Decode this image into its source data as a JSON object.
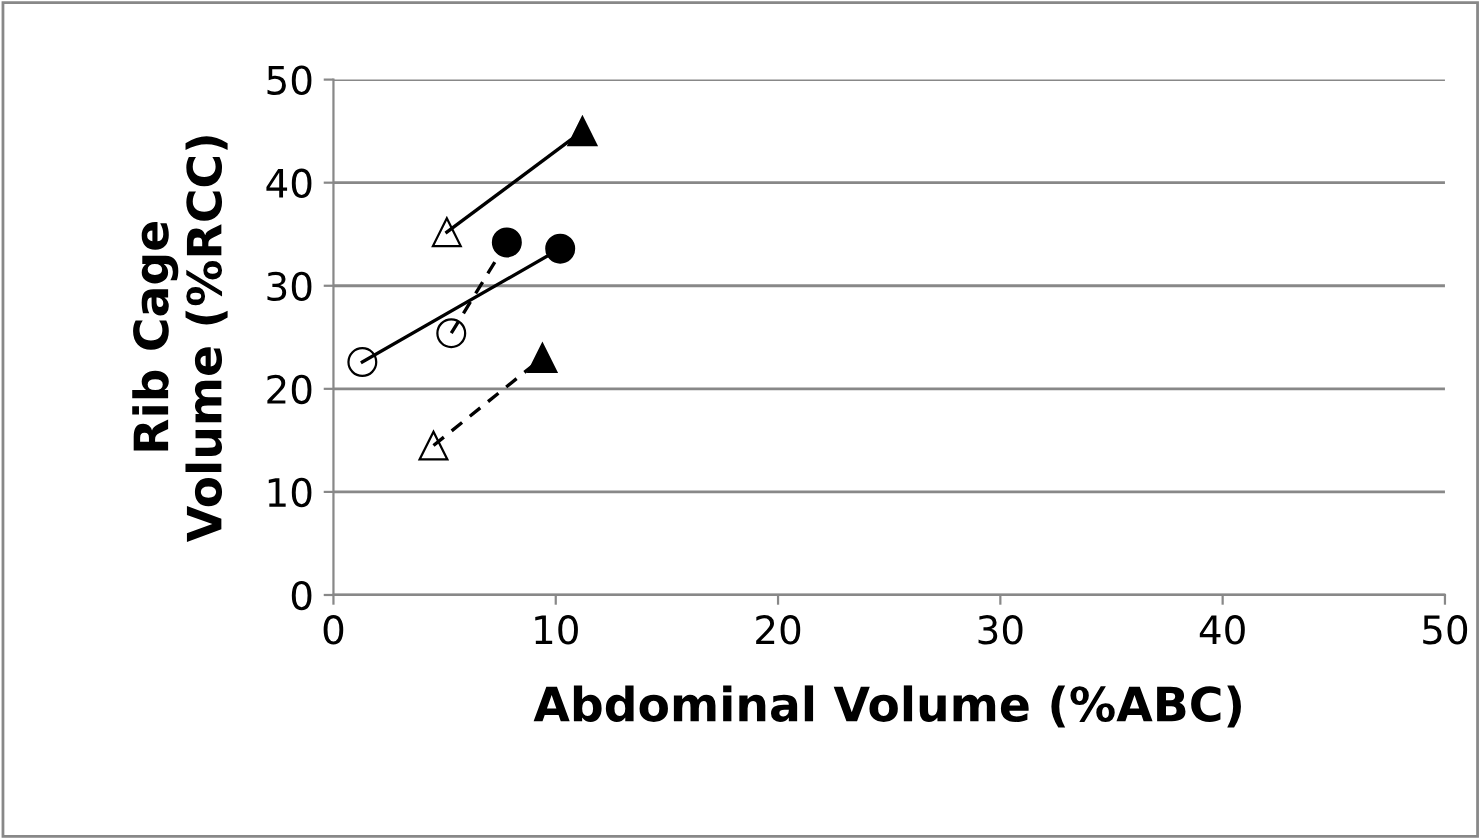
{
  "chart_data": {
    "type": "line",
    "xlabel": "Abdominal Volume (%ABC)",
    "ylabel": "Rib Cage\nVolume (%RCC)",
    "series": [
      {
        "color": "#000000",
        "colors": [
          "#ffffff",
          "#000000"
        ],
        "marker": "triangle",
        "line_style": "solid",
        "x": [
          5.1,
          11.2
        ],
        "values": [
          35.2,
          45
        ]
      },
      {
        "color": "#000000",
        "colors": [
          "#ffffff",
          "#000000"
        ],
        "marker": "circle",
        "line_style": "solid",
        "x": [
          1.3,
          10.2
        ],
        "values": [
          22.6,
          33.6
        ]
      },
      {
        "color": "#000000",
        "colors": [
          "#ffffff",
          "#000000"
        ],
        "marker": "circle",
        "line_style": "dashed",
        "x": [
          5.3,
          7.8
        ],
        "values": [
          25.4,
          34.2
        ]
      },
      {
        "color": "#000000",
        "colors": [
          "#ffffff",
          "#000000"
        ],
        "marker": "triangle",
        "line_style": "dashed",
        "x": [
          4.5,
          9.4
        ],
        "values": [
          14.5,
          23
        ]
      }
    ],
    "xlim": [
      0,
      50
    ],
    "xticks": [
      0,
      10,
      20,
      30,
      40,
      50
    ],
    "ylim": [
      0,
      50
    ],
    "yticks": [
      0,
      10,
      20,
      30,
      40,
      50
    ],
    "grid": "y",
    "legend": false
  }
}
